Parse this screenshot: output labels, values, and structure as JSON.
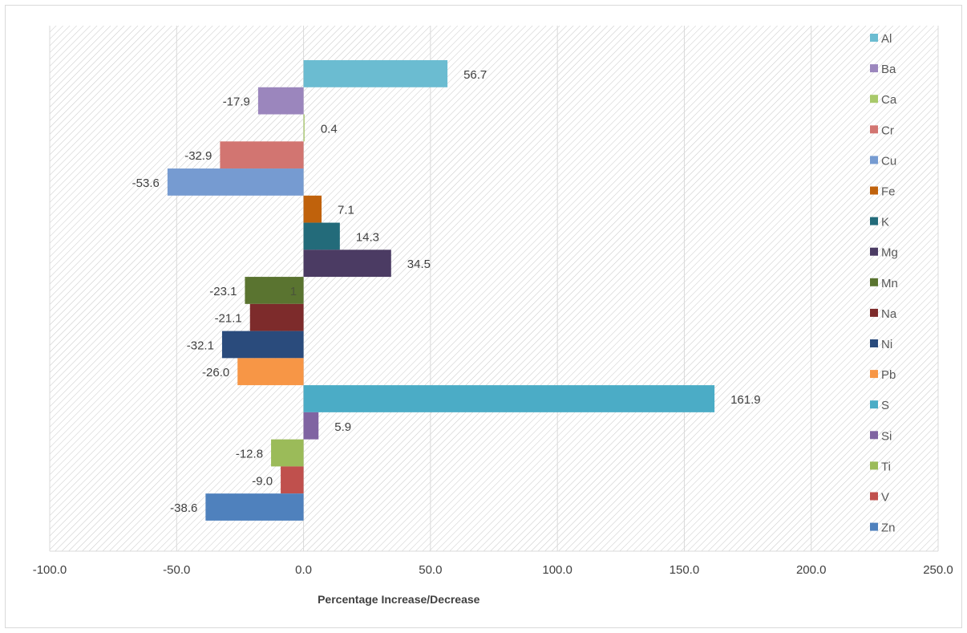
{
  "chart_data": {
    "type": "bar",
    "orientation": "horizontal",
    "xlabel": "Percentage Increase/Decrease",
    "ylabel": "",
    "xlim": [
      -100,
      250
    ],
    "xticks": [
      -100,
      -50,
      0,
      50,
      100,
      150,
      200,
      250
    ],
    "xtick_labels": [
      "-100.0",
      "-50.0",
      "0.0",
      "50.0",
      "100.0",
      "150.0",
      "200.0",
      "250.0"
    ],
    "grid": true,
    "legend_position": "right",
    "series": [
      {
        "name": "Al",
        "value": 56.7,
        "label": "56.7",
        "color": "#6BBCD1"
      },
      {
        "name": "Ba",
        "value": -17.9,
        "label": "-17.9",
        "color": "#9B86BD"
      },
      {
        "name": "Ca",
        "value": 0.4,
        "label": "0.4",
        "color": "#A8C96A"
      },
      {
        "name": "Cr",
        "value": -32.9,
        "label": "-32.9",
        "color": "#D27571"
      },
      {
        "name": "Cu",
        "value": -53.6,
        "label": "-53.6",
        "color": "#769BD1"
      },
      {
        "name": "Fe",
        "value": 7.1,
        "label": "7.1",
        "color": "#C0620C"
      },
      {
        "name": "K",
        "value": 14.3,
        "label": "14.3",
        "color": "#236B7A"
      },
      {
        "name": "Mg",
        "value": 34.5,
        "label": "34.5",
        "color": "#4B3B63"
      },
      {
        "name": "Mn",
        "value": -23.1,
        "label": "-23.1",
        "color": "#5A7430"
      },
      {
        "name": "Na",
        "value": -21.1,
        "label": "-21.1",
        "color": "#7D2B2B"
      },
      {
        "name": "Ni",
        "value": -32.1,
        "label": "-32.1",
        "color": "#2A4B7C"
      },
      {
        "name": "Pb",
        "value": -26.0,
        "label": "-26.0",
        "color": "#F79646"
      },
      {
        "name": "S",
        "value": 161.9,
        "label": "161.9",
        "color": "#4BACC6"
      },
      {
        "name": "Si",
        "value": 5.9,
        "label": "5.9",
        "color": "#8064A2"
      },
      {
        "name": "Ti",
        "value": -12.8,
        "label": "-12.8",
        "color": "#9BBB59"
      },
      {
        "name": "V",
        "value": -9.0,
        "label": "-9.0",
        "color": "#C0504D"
      },
      {
        "name": "Zn",
        "value": -38.6,
        "label": "-38.6",
        "color": "#4F81BD"
      }
    ],
    "annotations": [
      {
        "text": "1",
        "x": -4,
        "row": "Mn"
      }
    ]
  }
}
